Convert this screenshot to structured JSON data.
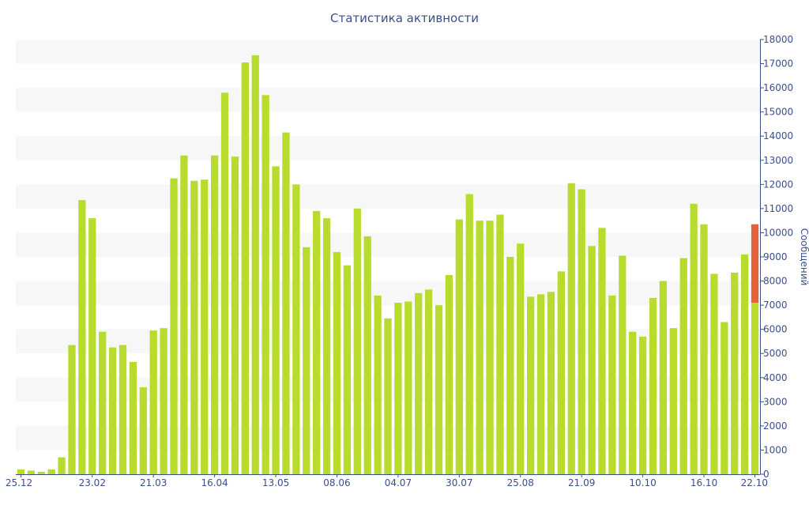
{
  "chart_data": {
    "type": "bar",
    "title": "Статистика активности",
    "ylabel": "Сообщений",
    "xlabel": "",
    "ylim": [
      0,
      18000
    ],
    "y_ticks": [
      0,
      1000,
      2000,
      3000,
      4000,
      5000,
      6000,
      7000,
      8000,
      9000,
      10000,
      11000,
      12000,
      13000,
      14000,
      15000,
      16000,
      17000,
      18000
    ],
    "y_axis_side": "right",
    "grid": "alternating horizontal bands",
    "x_tick_labels": [
      "25.12",
      "23.02",
      "21.03",
      "16.04",
      "13.05",
      "08.06",
      "04.07",
      "30.07",
      "25.08",
      "21.09",
      "10.10",
      "16.10",
      "22.10"
    ],
    "x_tick_positions": [
      0,
      7,
      13,
      19,
      25,
      31,
      37,
      43,
      49,
      55,
      61,
      67,
      72
    ],
    "colors": {
      "bar": "#b8dc2e",
      "highlight": "#e2623a",
      "axis": "#3a4f8a",
      "band": "#f7f7f7"
    },
    "series": [
      {
        "values": [
          200,
          150,
          100,
          200,
          700,
          5350,
          11350,
          10600,
          5900,
          5250,
          5350,
          4650,
          3600,
          5950,
          6050,
          12250,
          13200,
          12150,
          12200,
          13200,
          15800,
          13150,
          17050,
          17350,
          15700,
          12750,
          14150,
          12000,
          9400,
          10900,
          10600,
          9200,
          8650,
          11000,
          9850,
          7400,
          6450,
          7100,
          7150,
          7500,
          7650,
          7000,
          8250,
          10550,
          11600,
          10500,
          10500,
          10750,
          9000,
          9550,
          7350,
          7450,
          7550,
          8400,
          12050,
          11800,
          9450,
          10200,
          7400,
          9050,
          5900,
          5700,
          7300,
          8000,
          6050,
          8950,
          11200,
          10350,
          8300,
          6300,
          8350,
          9100,
          7100
        ]
      },
      {
        "name": "current",
        "index": 72,
        "base": 7100,
        "value": 10350
      }
    ]
  }
}
